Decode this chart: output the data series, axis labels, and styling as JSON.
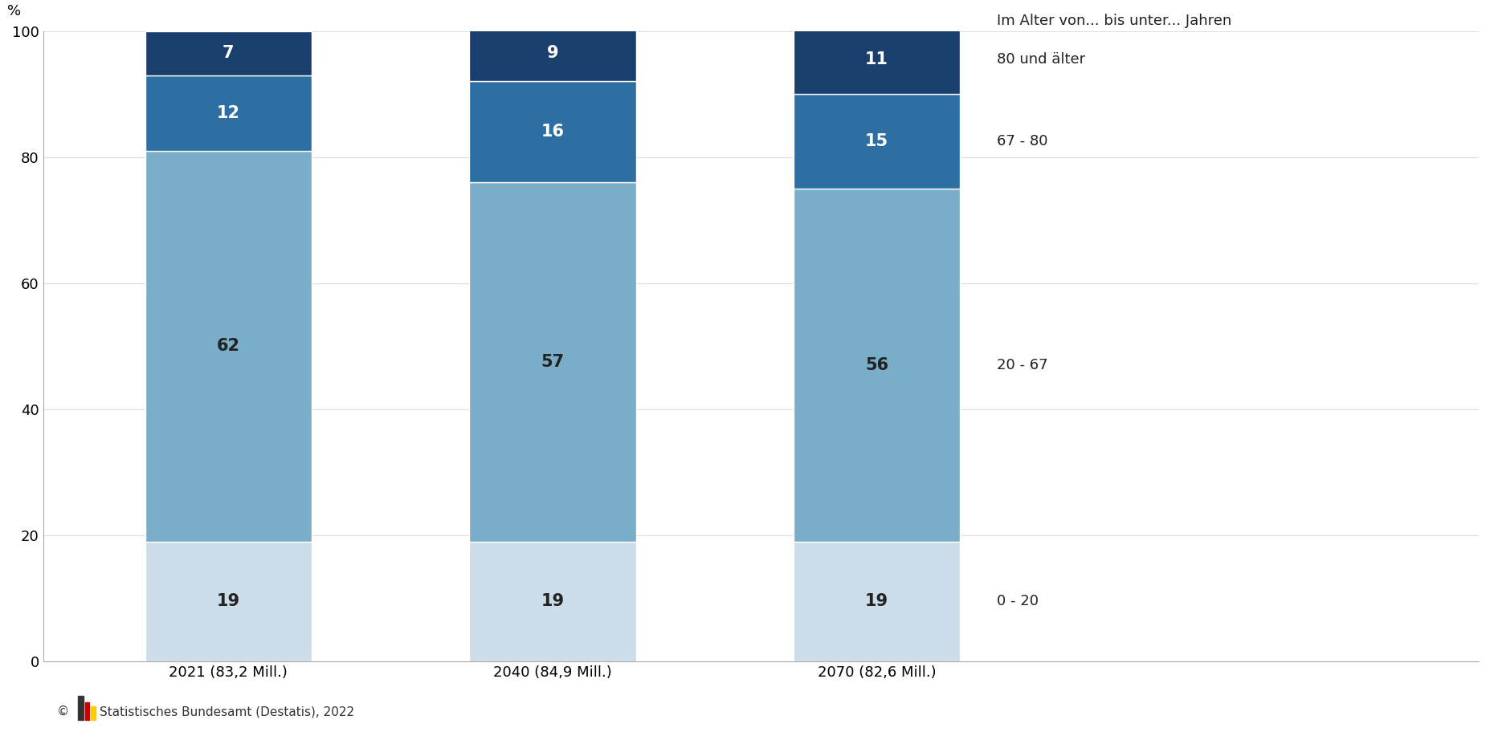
{
  "years": [
    "2021 (83,2 Mill.)",
    "2040 (84,9 Mill.)",
    "2070 (82,6 Mill.)"
  ],
  "segments": [
    {
      "label": "0 - 20",
      "values": [
        19,
        19,
        19
      ],
      "color": "#ccdce8"
    },
    {
      "label": "20 - 67",
      "values": [
        62,
        57,
        56
      ],
      "color": "#7aaec8"
    },
    {
      "label": "67 - 80",
      "values": [
        12,
        16,
        15
      ],
      "color": "#2e6fa3"
    },
    {
      "label": "80 und älter",
      "values": [
        7,
        9,
        11
      ],
      "color": "#1a3f6f"
    }
  ],
  "legend_title": "Im Alter von... bis unter... Jahren",
  "ylabel": "%",
  "ylim": [
    0,
    100
  ],
  "yticks": [
    0,
    20,
    40,
    60,
    80,
    100
  ],
  "bar_width": 0.18,
  "x_positions": [
    0.2,
    0.55,
    0.9
  ],
  "xlim": [
    0.0,
    1.55
  ],
  "bg_color": "#ffffff",
  "text_color": "#222222",
  "dark_text_color": "#ffffff",
  "tick_fontsize": 13,
  "annotation_fontsize": 15,
  "legend_title_fontsize": 13,
  "legend_label_fontsize": 13,
  "ylabel_fontsize": 13,
  "footer_text": "Statistisches Bundesamt (Destatis), 2022",
  "footer_fontsize": 11,
  "spine_color": "#aaaaaa",
  "grid_color": "#dddddd"
}
